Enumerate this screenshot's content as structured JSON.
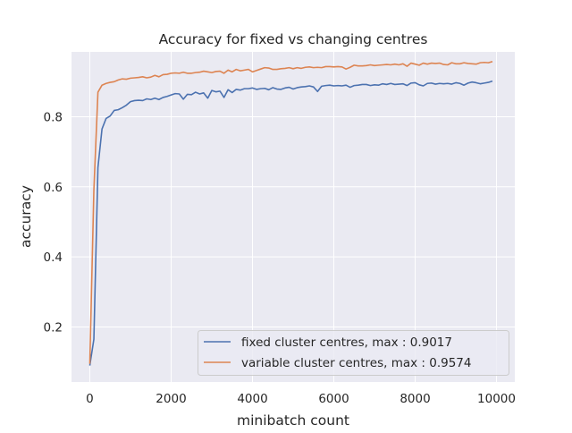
{
  "chart_data": {
    "type": "line",
    "title": "Accuracy for fixed vs changing centres",
    "xlabel": "minibatch count",
    "ylabel": "accuracy",
    "xlim": [
      -450,
      10450
    ],
    "ylim": [
      0.043,
      0.985
    ],
    "xticks": [
      0,
      2000,
      4000,
      6000,
      8000,
      10000
    ],
    "xtick_labels": [
      "0",
      "2000",
      "4000",
      "6000",
      "8000",
      "10000"
    ],
    "yticks": [
      0.2,
      0.4,
      0.6,
      0.8
    ],
    "ytick_labels": [
      "0.2",
      "0.4",
      "0.6",
      "0.8"
    ],
    "grid": true,
    "legend_position": "lower-right",
    "series": [
      {
        "name": "fixed cluster centres, max : 0.9017",
        "color": "#4c72b0",
        "x": [
          0,
          100,
          200,
          300,
          400,
          500,
          600,
          700,
          800,
          900,
          1000,
          1100,
          1200,
          1300,
          1400,
          1500,
          1600,
          1700,
          1800,
          1900,
          2000,
          2100,
          2200,
          2300,
          2400,
          2500,
          2600,
          2700,
          2800,
          2900,
          3000,
          3100,
          3200,
          3300,
          3400,
          3500,
          3600,
          3700,
          3800,
          3900,
          4000,
          4100,
          4200,
          4300,
          4400,
          4500,
          4600,
          4700,
          4800,
          4900,
          5000,
          5100,
          5200,
          5300,
          5400,
          5500,
          5600,
          5700,
          5800,
          5900,
          6000,
          6100,
          6200,
          6300,
          6400,
          6500,
          6600,
          6700,
          6800,
          6900,
          7000,
          7100,
          7200,
          7300,
          7400,
          7500,
          7600,
          7700,
          7800,
          7900,
          8000,
          8100,
          8200,
          8300,
          8400,
          8500,
          8600,
          8700,
          8800,
          8900,
          9000,
          9100,
          9200,
          9300,
          9400,
          9500,
          9600,
          9700,
          9800,
          9900
        ],
        "values": [
          0.09,
          0.165,
          0.655,
          0.765,
          0.795,
          0.802,
          0.818,
          0.82,
          0.826,
          0.833,
          0.843,
          0.846,
          0.847,
          0.846,
          0.851,
          0.849,
          0.853,
          0.849,
          0.855,
          0.858,
          0.862,
          0.866,
          0.865,
          0.85,
          0.864,
          0.863,
          0.87,
          0.865,
          0.868,
          0.853,
          0.875,
          0.871,
          0.873,
          0.855,
          0.877,
          0.869,
          0.878,
          0.876,
          0.88,
          0.88,
          0.882,
          0.878,
          0.88,
          0.881,
          0.877,
          0.883,
          0.879,
          0.878,
          0.882,
          0.884,
          0.879,
          0.883,
          0.885,
          0.886,
          0.888,
          0.885,
          0.872,
          0.887,
          0.889,
          0.89,
          0.888,
          0.889,
          0.888,
          0.89,
          0.884,
          0.889,
          0.89,
          0.892,
          0.892,
          0.889,
          0.891,
          0.89,
          0.894,
          0.892,
          0.895,
          0.892,
          0.893,
          0.894,
          0.889,
          0.896,
          0.897,
          0.891,
          0.888,
          0.895,
          0.896,
          0.893,
          0.895,
          0.894,
          0.895,
          0.893,
          0.897,
          0.895,
          0.89,
          0.896,
          0.899,
          0.897,
          0.894,
          0.896,
          0.898,
          0.9017
        ]
      },
      {
        "name": "variable cluster centres, max : 0.9574",
        "color": "#dd8452",
        "x": [
          0,
          100,
          200,
          300,
          400,
          500,
          600,
          700,
          800,
          900,
          1000,
          1100,
          1200,
          1300,
          1400,
          1500,
          1600,
          1700,
          1800,
          1900,
          2000,
          2100,
          2200,
          2300,
          2400,
          2500,
          2600,
          2700,
          2800,
          2900,
          3000,
          3100,
          3200,
          3300,
          3400,
          3500,
          3600,
          3700,
          3800,
          3900,
          4000,
          4100,
          4200,
          4300,
          4400,
          4500,
          4600,
          4700,
          4800,
          4900,
          5000,
          5100,
          5200,
          5300,
          5400,
          5500,
          5600,
          5700,
          5800,
          5900,
          6000,
          6100,
          6200,
          6300,
          6400,
          6500,
          6600,
          6700,
          6800,
          6900,
          7000,
          7100,
          7200,
          7300,
          7400,
          7500,
          7600,
          7700,
          7800,
          7900,
          8000,
          8100,
          8200,
          8300,
          8400,
          8500,
          8600,
          8700,
          8800,
          8900,
          9000,
          9100,
          9200,
          9300,
          9400,
          9500,
          9600,
          9700,
          9800,
          9900
        ],
        "values": [
          0.095,
          0.59,
          0.87,
          0.89,
          0.895,
          0.898,
          0.9,
          0.905,
          0.908,
          0.907,
          0.91,
          0.911,
          0.912,
          0.914,
          0.911,
          0.913,
          0.918,
          0.914,
          0.92,
          0.921,
          0.924,
          0.925,
          0.924,
          0.927,
          0.924,
          0.924,
          0.926,
          0.927,
          0.93,
          0.928,
          0.926,
          0.929,
          0.93,
          0.924,
          0.933,
          0.928,
          0.935,
          0.931,
          0.933,
          0.935,
          0.928,
          0.932,
          0.936,
          0.94,
          0.939,
          0.935,
          0.935,
          0.937,
          0.938,
          0.94,
          0.937,
          0.94,
          0.938,
          0.941,
          0.942,
          0.94,
          0.941,
          0.94,
          0.943,
          0.943,
          0.942,
          0.943,
          0.942,
          0.936,
          0.941,
          0.947,
          0.945,
          0.945,
          0.946,
          0.948,
          0.946,
          0.947,
          0.948,
          0.949,
          0.948,
          0.95,
          0.948,
          0.951,
          0.944,
          0.953,
          0.95,
          0.947,
          0.953,
          0.95,
          0.953,
          0.952,
          0.953,
          0.949,
          0.948,
          0.954,
          0.951,
          0.951,
          0.954,
          0.952,
          0.951,
          0.95,
          0.954,
          0.955,
          0.954,
          0.9574
        ]
      }
    ]
  }
}
